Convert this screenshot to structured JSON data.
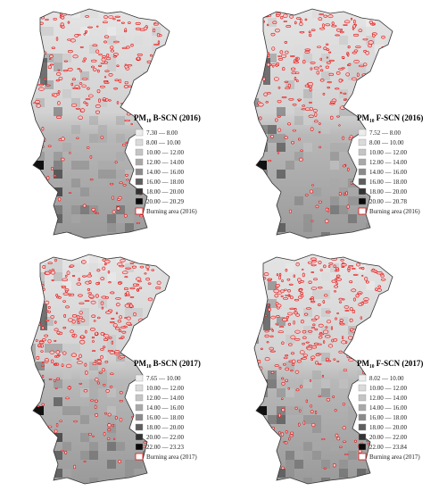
{
  "panels": [
    {
      "title": "PM₁₀ B-SCN (2016)",
      "legend": [
        "7.30 — 8.00",
        "8.00 — 10.00",
        "10.00 — 12.00",
        "12.00 — 14.00",
        "14.00 — 16.00",
        "16.00 — 18.00",
        "18.00 — 20.00",
        "20.00 — 20.29"
      ],
      "burning_label": "Burning area (2016)"
    },
    {
      "title": "PM₁₀ F-SCN (2016)",
      "legend": [
        "7.52 — 8.00",
        "8.00 — 10.00",
        "10.00 — 12.00",
        "12.00 — 14.00",
        "14.00 — 16.00",
        "16.00 — 18.00",
        "18.00 — 20.00",
        "20.00 — 20.78"
      ],
      "burning_label": "Burning area (2016)"
    },
    {
      "title": "PM₁₀ B-SCN (2017)",
      "legend": [
        "7.65 — 10.00",
        "10.00 — 12.00",
        "12.00 — 14.00",
        "14.00 — 16.00",
        "16.00 — 18.00",
        "18.00 — 20.00",
        "20.00 — 22.00",
        "22.00 — 23.23"
      ],
      "burning_label": "Burning area (2017)"
    },
    {
      "title": "PM₁₀ F-SCN (2017)",
      "legend": [
        "8.02 — 10.00",
        "10.00 — 12.00",
        "12.00 — 14.00",
        "14.00 — 16.00",
        "16.00 — 18.00",
        "18.00 — 20.00",
        "20.00 — 22.00",
        "22.00 — 23.84"
      ],
      "burning_label": "Burning area (2017)"
    }
  ]
}
